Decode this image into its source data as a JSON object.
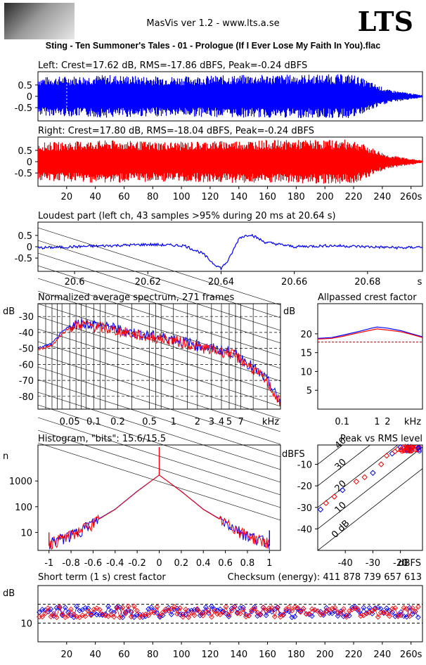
{
  "header": {
    "app_title": "MasVis ver 1.2 - www.lts.a.se",
    "brand": "LTS",
    "file_title": "Sting - Ten Summoner's Tales - 01 - Prologue (If I Ever Lose My Faith In You).flac"
  },
  "colors": {
    "left": "#0000ff",
    "right": "#ff0000"
  },
  "chart_data": [
    {
      "type": "area",
      "title": "Left: Crest=17.62 dB, RMS=-17.86 dBFS, Peak=-0.24 dBFS",
      "yticks": [
        "0.5",
        "0",
        "-0.5"
      ],
      "ylim": [
        -1,
        1
      ],
      "xlim": [
        0,
        268
      ],
      "series": [
        {
          "values": [
            0.85,
            0.9,
            0.95,
            0.9,
            0.88,
            0.92,
            0.95,
            0.96,
            0.97,
            0.98,
            0.3,
            0.05
          ]
        }
      ]
    },
    {
      "type": "area",
      "title": "Right: Crest=17.80 dB, RMS=-18.04 dBFS, Peak=-0.24 dBFS",
      "yticks": [
        "0.5",
        "0",
        "-0.5"
      ],
      "ylim": [
        -1,
        1
      ],
      "xlim": [
        0,
        268
      ],
      "xticks": [
        "20",
        "40",
        "60",
        "80",
        "100",
        "120",
        "140",
        "160",
        "180",
        "200",
        "220",
        "240",
        "260s"
      ],
      "series": [
        {
          "values": [
            0.85,
            0.9,
            0.95,
            0.9,
            0.88,
            0.92,
            0.95,
            0.96,
            0.97,
            0.98,
            0.3,
            0.05
          ]
        }
      ]
    },
    {
      "type": "line",
      "title": "Loudest part (left  ch, 43 samples >95% during 20 ms at 20.64 s)",
      "yticks": [
        "0.5",
        "0",
        "-0.5"
      ],
      "ylim": [
        -1,
        1
      ],
      "xlim": [
        20.59,
        20.695
      ],
      "xticks": [
        "20.6",
        "20.62",
        "20.64",
        "20.66",
        "20.68",
        "s"
      ],
      "x": [
        20.59,
        20.6,
        20.61,
        20.62,
        20.63,
        20.635,
        20.638,
        20.64,
        20.642,
        20.645,
        20.648,
        20.652,
        20.66,
        20.67,
        20.68,
        20.69,
        20.695
      ],
      "series": [
        {
          "values": [
            -0.05,
            0.0,
            0.05,
            0.1,
            0.05,
            -0.3,
            -0.75,
            -0.95,
            -0.6,
            0.4,
            0.55,
            0.2,
            0.0,
            0.05,
            0.0,
            -0.05,
            0.0
          ]
        }
      ]
    },
    {
      "type": "line",
      "title": "Normalized average spectrum, 271 frames",
      "ylabel": "dB",
      "yticks": [
        "-30",
        "-40",
        "-50",
        "-60",
        "-70",
        "-80"
      ],
      "ylim": [
        -88,
        -22
      ],
      "xticks": [
        "0.05",
        "0.1",
        "0.2",
        "0.5",
        "1",
        "2",
        "3",
        "4",
        "5",
        "7",
        "kHz"
      ],
      "xlim_khz": [
        0.02,
        22
      ],
      "x_khz": [
        0.02,
        0.03,
        0.04,
        0.05,
        0.07,
        0.1,
        0.2,
        0.3,
        0.5,
        1,
        2,
        3,
        5,
        7,
        10,
        15,
        22
      ],
      "series": [
        {
          "color": "#0000ff",
          "values": [
            -50,
            -47,
            -40,
            -36,
            -34,
            -35,
            -38,
            -40,
            -42,
            -44,
            -48,
            -50,
            -52,
            -56,
            -62,
            -70,
            -84
          ]
        },
        {
          "color": "#ff0000",
          "values": [
            -51,
            -48,
            -41,
            -37,
            -35,
            -36,
            -39,
            -41,
            -43,
            -45,
            -49,
            -51,
            -53,
            -57,
            -63,
            -71,
            -85
          ]
        }
      ]
    },
    {
      "type": "line",
      "title": "Allpassed crest factor",
      "ylabel": "dB",
      "yticks": [
        "20",
        "15",
        "10",
        "5"
      ],
      "ylim": [
        0,
        28
      ],
      "xticks": [
        "0.1",
        "1",
        "2",
        "kHz"
      ],
      "x_khz": [
        0.02,
        0.05,
        0.1,
        0.3,
        0.7,
        1,
        2,
        5,
        10,
        20
      ],
      "series": [
        {
          "color": "#0000ff",
          "values": [
            18.8,
            19.0,
            19.6,
            20.6,
            21.5,
            21.8,
            21.5,
            20.8,
            20.0,
            19.2
          ]
        },
        {
          "color": "#ff0000",
          "values": [
            18.6,
            18.8,
            19.3,
            20.3,
            21.0,
            21.3,
            21.0,
            20.5,
            19.8,
            19.0
          ]
        }
      ],
      "reference": 17.8
    },
    {
      "type": "line",
      "title": "Histogram, \"bits\": 15.6/15.5",
      "ylabel": "n",
      "yticks": [
        "1000",
        "100",
        "10"
      ],
      "xticks": [
        "-1",
        "-0.8",
        "-0.6",
        "-0.4",
        "-0.2",
        "0",
        "0.2",
        "0.4",
        "0.6",
        "0.8",
        "1"
      ],
      "xlim": [
        -1.1,
        1.1
      ],
      "x": [
        -1.0,
        -0.8,
        -0.6,
        -0.4,
        -0.2,
        0,
        0.2,
        0.4,
        0.6,
        0.8,
        1.0
      ],
      "series": [
        {
          "color": "#0000ff",
          "values": [
            4,
            8,
            25,
            80,
            400,
            1700,
            400,
            80,
            25,
            8,
            4
          ]
        },
        {
          "color": "#ff0000",
          "values": [
            4,
            8,
            24,
            78,
            390,
            1700,
            390,
            78,
            24,
            8,
            4
          ]
        }
      ]
    },
    {
      "type": "scatter",
      "title": "Peak vs RMS level",
      "ylabel": "dBFS",
      "xlabel": "dBFS",
      "yticks": [
        "-10",
        "-20",
        "-30",
        "-40"
      ],
      "xticks": [
        "-40",
        "-30",
        "-20"
      ],
      "diag_labels": [
        "40",
        "30",
        "20",
        "10",
        "0 dB"
      ],
      "xlim": [
        -50,
        -12
      ],
      "ylim": [
        -50,
        -1
      ],
      "x": [
        -49,
        -47,
        -44,
        -41,
        -36,
        -33,
        -30,
        -27,
        -25,
        -23,
        -22,
        -21,
        -20,
        -19,
        -18,
        -17,
        -16
      ],
      "series": [
        {
          "values": [
            -31,
            -28,
            -25,
            -22,
            -18,
            -16,
            -14,
            -10,
            -6,
            -5,
            -4,
            -3,
            -2,
            -2,
            -1.5,
            -1.5,
            -1.5
          ]
        }
      ]
    },
    {
      "type": "scatter",
      "title": "Short term (1 s) crest factor",
      "checksum": "Checksum (energy):   411 878 739 657 613",
      "ylabel": "dB",
      "yticks": [
        "10"
      ],
      "ylim": [
        0,
        30
      ],
      "xlim": [
        0,
        268
      ],
      "xticks": [
        "20",
        "40",
        "60",
        "80",
        "100",
        "120",
        "140",
        "160",
        "180",
        "200",
        "220",
        "240",
        "260s"
      ],
      "reference": 20
    }
  ]
}
